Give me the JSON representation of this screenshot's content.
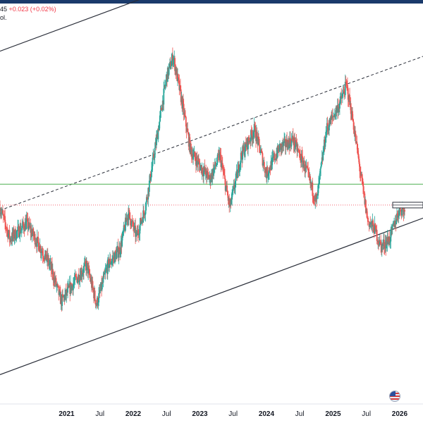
{
  "header": {
    "price_fragment": "45",
    "change": "+0.023 (+0.02%)",
    "vol_fragment": "ol."
  },
  "flag_icon": "us-flag-icon",
  "colors": {
    "up": "#26a69a",
    "down": "#ef5350",
    "channel": "#2a2e39",
    "level": "#4caf50",
    "current": "#f23645"
  },
  "chart_data": {
    "type": "candlestick",
    "x_ticks": [
      "2021",
      "Jul",
      "2022",
      "Jul",
      "2023",
      "Jul",
      "2024",
      "Jul",
      "2025",
      "Jul",
      "2026"
    ],
    "x_domain": [
      2020.0,
      2026.35
    ],
    "trend_series": [
      {
        "t": 2020.0,
        "v": 0.42
      },
      {
        "t": 2020.15,
        "v": 0.3
      },
      {
        "t": 2020.4,
        "v": 0.36
      },
      {
        "t": 2020.75,
        "v": 0.2
      },
      {
        "t": 2020.92,
        "v": 0.06
      },
      {
        "t": 2021.1,
        "v": 0.13
      },
      {
        "t": 2021.3,
        "v": 0.2
      },
      {
        "t": 2021.45,
        "v": 0.05
      },
      {
        "t": 2021.62,
        "v": 0.2
      },
      {
        "t": 2021.8,
        "v": 0.26
      },
      {
        "t": 2021.92,
        "v": 0.4
      },
      {
        "t": 2022.05,
        "v": 0.31
      },
      {
        "t": 2022.18,
        "v": 0.42
      },
      {
        "t": 2022.35,
        "v": 0.68
      },
      {
        "t": 2022.5,
        "v": 0.92
      },
      {
        "t": 2022.6,
        "v": 1.0
      },
      {
        "t": 2022.72,
        "v": 0.84
      },
      {
        "t": 2022.86,
        "v": 0.64
      },
      {
        "t": 2023.0,
        "v": 0.58
      },
      {
        "t": 2023.15,
        "v": 0.53
      },
      {
        "t": 2023.3,
        "v": 0.62
      },
      {
        "t": 2023.45,
        "v": 0.42
      },
      {
        "t": 2023.62,
        "v": 0.62
      },
      {
        "t": 2023.82,
        "v": 0.72
      },
      {
        "t": 2024.0,
        "v": 0.55
      },
      {
        "t": 2024.2,
        "v": 0.65
      },
      {
        "t": 2024.4,
        "v": 0.68
      },
      {
        "t": 2024.6,
        "v": 0.56
      },
      {
        "t": 2024.75,
        "v": 0.44
      },
      {
        "t": 2024.9,
        "v": 0.72
      },
      {
        "t": 2025.1,
        "v": 0.82
      },
      {
        "t": 2025.2,
        "v": 0.89
      },
      {
        "t": 2025.3,
        "v": 0.75
      },
      {
        "t": 2025.4,
        "v": 0.57
      },
      {
        "t": 2025.52,
        "v": 0.37
      },
      {
        "t": 2025.62,
        "v": 0.34
      },
      {
        "t": 2025.72,
        "v": 0.27
      },
      {
        "t": 2025.85,
        "v": 0.3
      },
      {
        "t": 2026.0,
        "v": 0.42
      },
      {
        "t": 2026.1,
        "v": 0.4
      }
    ],
    "trend_range": [
      0.0,
      1.0
    ],
    "levels": {
      "green_line": 0.51,
      "current_price_line": 0.43
    },
    "channel_lines": [
      {
        "style": "solid",
        "from": [
          2020.0,
          1.02
        ],
        "to": [
          2026.35,
          1.62
        ]
      },
      {
        "style": "dashed",
        "from": [
          2020.0,
          0.41
        ],
        "to": [
          2026.35,
          1.0
        ]
      },
      {
        "style": "solid",
        "from": [
          2020.0,
          -0.22
        ],
        "to": [
          2026.35,
          0.38
        ]
      }
    ]
  }
}
